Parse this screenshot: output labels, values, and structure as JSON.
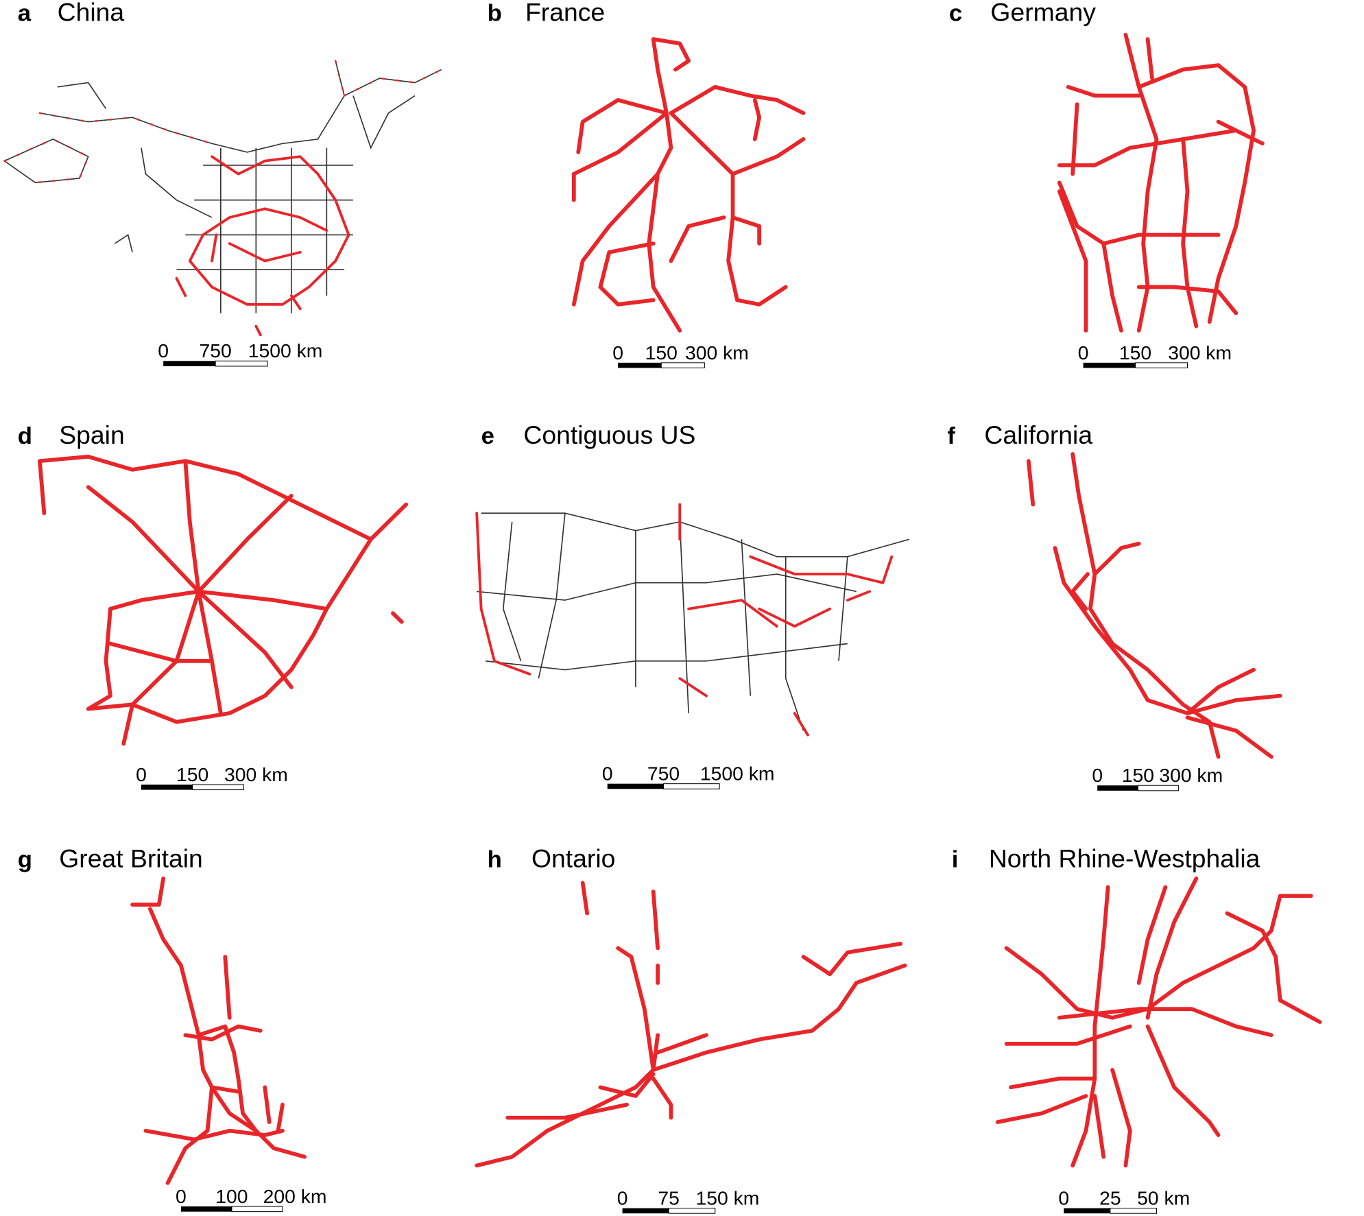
{
  "panels": [
    {
      "letter": "a",
      "title": "China",
      "scale": [
        "0",
        "750",
        "1500 km"
      ]
    },
    {
      "letter": "b",
      "title": "France",
      "scale": [
        "0",
        "150",
        "300 km"
      ]
    },
    {
      "letter": "c",
      "title": "Germany",
      "scale": [
        "0",
        "150",
        "300 km"
      ]
    },
    {
      "letter": "d",
      "title": "Spain",
      "scale": [
        "0",
        "150",
        "300 km"
      ]
    },
    {
      "letter": "e",
      "title": "Contiguous US",
      "scale": [
        "0",
        "750",
        "1500 km"
      ]
    },
    {
      "letter": "f",
      "title": "California",
      "scale": [
        "0",
        "150",
        "300 km"
      ]
    },
    {
      "letter": "g",
      "title": "Great Britain",
      "scale": [
        "0",
        "100",
        "200 km"
      ]
    },
    {
      "letter": "h",
      "title": "Ontario",
      "scale": [
        "0",
        "75",
        "150 km"
      ]
    },
    {
      "letter": "i",
      "title": "North Rhine-Westphalia",
      "scale": [
        "0",
        "25",
        "50 km"
      ]
    }
  ]
}
